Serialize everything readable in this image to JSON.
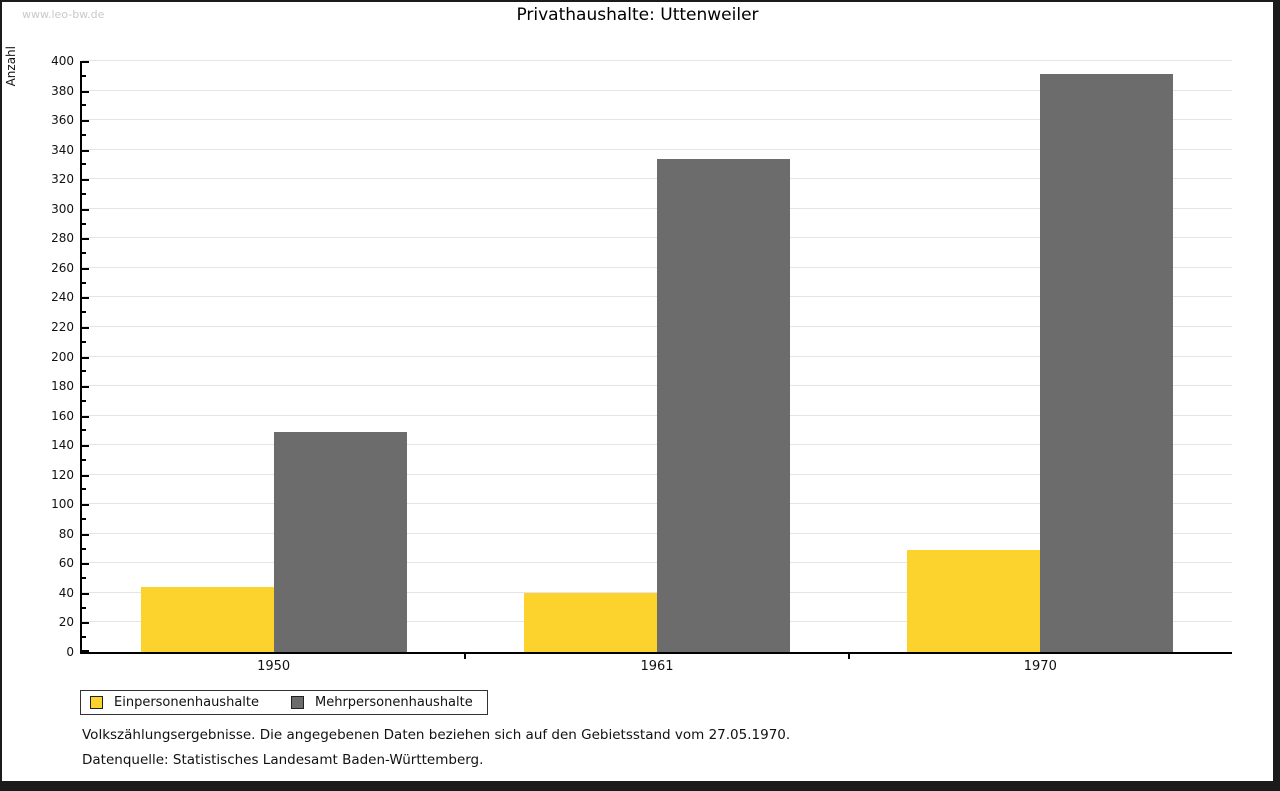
{
  "watermark": "www.leo-bw.de",
  "title": "Privathaushalte: Uttenweiler",
  "chart_data": {
    "type": "bar",
    "title": "Privathaushalte: Uttenweiler",
    "ylabel": "Anzahl",
    "xlabel": "",
    "categories": [
      "1950",
      "1961",
      "1970"
    ],
    "series": [
      {
        "name": "Einpersonenhaushalte",
        "color": "#FCD32D",
        "values": [
          44,
          40,
          69
        ]
      },
      {
        "name": "Mehrpersonenhaushalte",
        "color": "#6C6C6C",
        "values": [
          149,
          334,
          391
        ]
      }
    ],
    "ylim": [
      0,
      400
    ],
    "ytick_step": 20,
    "yminor_step": 10,
    "grid": true,
    "gridline_color": "#E5E5E5",
    "axis_color": "#000000",
    "legend_position": "bottom-left"
  },
  "footnotes": {
    "line1": "Volkszählungsergebnisse. Die angegebenen Daten beziehen sich auf den Gebietsstand vom 27.05.1970.",
    "line2": "Datenquelle: Statistisches Landesamt Baden-Württemberg."
  }
}
